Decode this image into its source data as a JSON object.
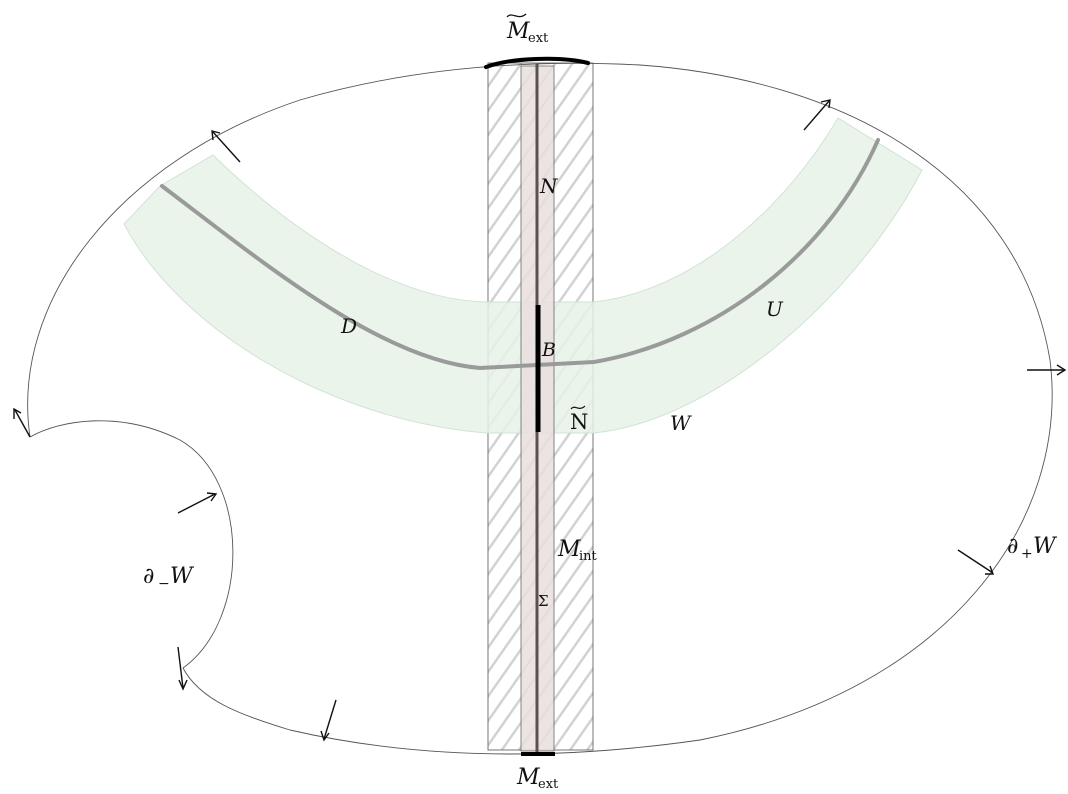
{
  "labels": {
    "m_ext_tilde": "M",
    "m_ext_tilde_sub": "ext",
    "m_ext": "M",
    "m_ext_sub": "ext",
    "n": "N",
    "b": "B",
    "n_tilde": "N",
    "d": "D",
    "u": "U",
    "w": "W",
    "m_int": "M",
    "m_int_sub": "int",
    "sigma": "Σ",
    "partial_minus_w": "∂",
    "partial_minus_sub": "−",
    "partial_minus_w_letter": "W",
    "partial_plus_w": "∂",
    "partial_plus_sub": "+",
    "partial_plus_w_letter": "W"
  },
  "colors": {
    "outline": "#555555",
    "band_fill": "#e6f2e8",
    "band_stroke": "#cfe3d3",
    "core_curve": "#9a9a9a",
    "strip_fill": "#e9dede",
    "strip_line": "#5c5050",
    "hatch": "#cfcfcf",
    "bold": "#000000"
  }
}
